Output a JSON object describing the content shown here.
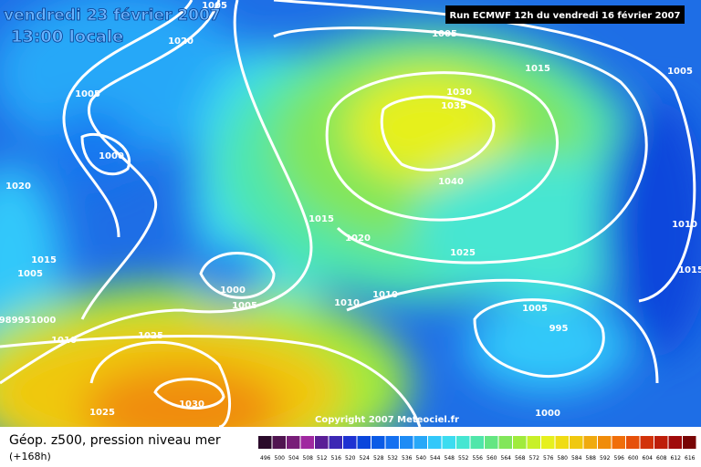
{
  "header": {
    "date": "vendredi 23 février 2007",
    "time": "13:00 locale",
    "run": "Run ECMWF 12h du vendredi 16 février 2007"
  },
  "isobar_labels": [
    "1005",
    "1020",
    "1005",
    "1000",
    "1020",
    "1015",
    "1005",
    "989951000",
    "1010",
    "1025",
    "1025",
    "1030",
    "1000",
    "1005",
    "1015",
    "1020",
    "1010",
    "1010",
    "1005",
    "1015",
    "1030",
    "1035",
    "1040",
    "1025",
    "1005",
    "995",
    "1000",
    "1005",
    "1010",
    "1015"
  ],
  "copyright": "Copyright 2007 Meteociel.fr",
  "legend": {
    "title": "Géop. z500, pression niveau mer",
    "subtitle": "(+168h)",
    "steps": [
      496,
      500,
      504,
      508,
      512,
      516,
      520,
      524,
      528,
      532,
      536,
      540,
      544,
      548,
      552,
      556,
      560,
      564,
      568,
      572,
      576,
      580,
      584,
      588,
      592,
      596,
      600,
      604,
      608,
      612,
      616
    ],
    "colors": [
      "#2a0a2a",
      "#501450",
      "#781e78",
      "#a028a0",
      "#5a1e96",
      "#3c28b4",
      "#1e32d2",
      "#0a46dc",
      "#0a5ae6",
      "#1470f0",
      "#1e8cf5",
      "#28a8f8",
      "#32c8fa",
      "#3cdcf0",
      "#46e6d2",
      "#50e6aa",
      "#64e682",
      "#82e65a",
      "#a0eb3c",
      "#c8f028",
      "#e6f01e",
      "#f0dc14",
      "#f0c80f",
      "#f0aa0f",
      "#f08c0a",
      "#f06e0a",
      "#e6500a",
      "#d2320a",
      "#be1e0a",
      "#a00a0a",
      "#780505"
    ]
  }
}
